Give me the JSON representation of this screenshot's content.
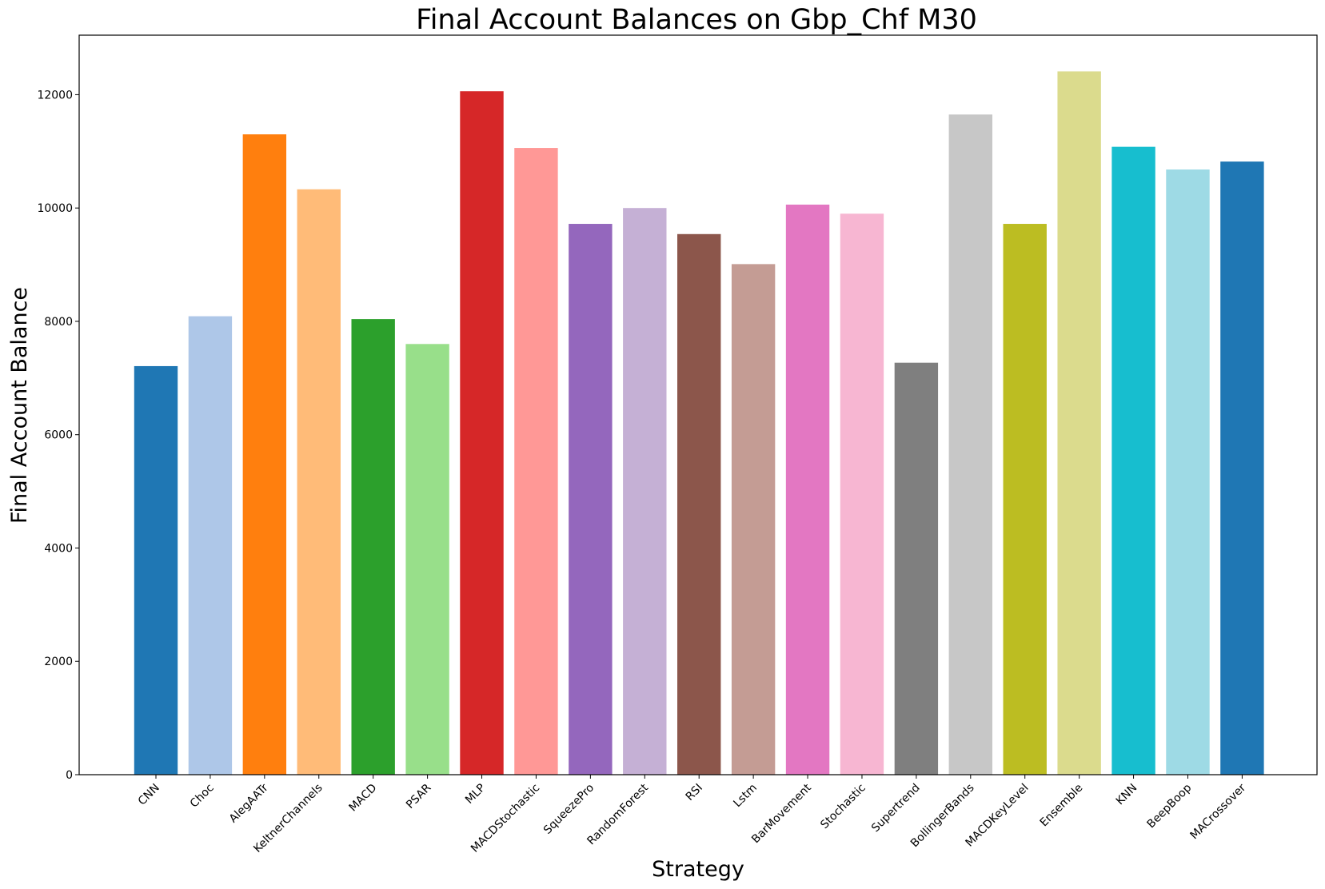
{
  "chart_data": {
    "type": "bar",
    "title": "Final Account Balances on Gbp_Chf M30",
    "xlabel": "Strategy",
    "ylabel": "Final Account Balance",
    "ylim": [
      0,
      13050
    ],
    "yticks": [
      0,
      2000,
      4000,
      6000,
      8000,
      10000,
      12000
    ],
    "grid": false,
    "categories": [
      "CNN",
      "Choc",
      "AlegAATr",
      "KeltnerChannels",
      "MACD",
      "PSAR",
      "MLP",
      "MACDStochastic",
      "SqueezePro",
      "RandomForest",
      "RSI",
      "Lstm",
      "BarMovement",
      "Stochastic",
      "Supertrend",
      "BollingerBands",
      "MACDKeyLevel",
      "Ensemble",
      "KNN",
      "BeepBoop",
      "MACrossover"
    ],
    "values": [
      7210,
      8090,
      11300,
      10330,
      8040,
      7600,
      12060,
      11060,
      9720,
      10000,
      9540,
      9010,
      10060,
      9900,
      7270,
      11650,
      9720,
      12410,
      11080,
      10680,
      10820
    ],
    "colors": [
      "#1f77b4",
      "#aec7e8",
      "#ff7f0e",
      "#ffbb78",
      "#2ca02c",
      "#98df8a",
      "#d62728",
      "#ff9896",
      "#9467bd",
      "#c5b0d5",
      "#8c564b",
      "#c49c94",
      "#e377c2",
      "#f7b6d2",
      "#7f7f7f",
      "#c7c7c7",
      "#bcbd22",
      "#dbdb8d",
      "#17becf",
      "#9edae5",
      "#1f77b4"
    ]
  }
}
